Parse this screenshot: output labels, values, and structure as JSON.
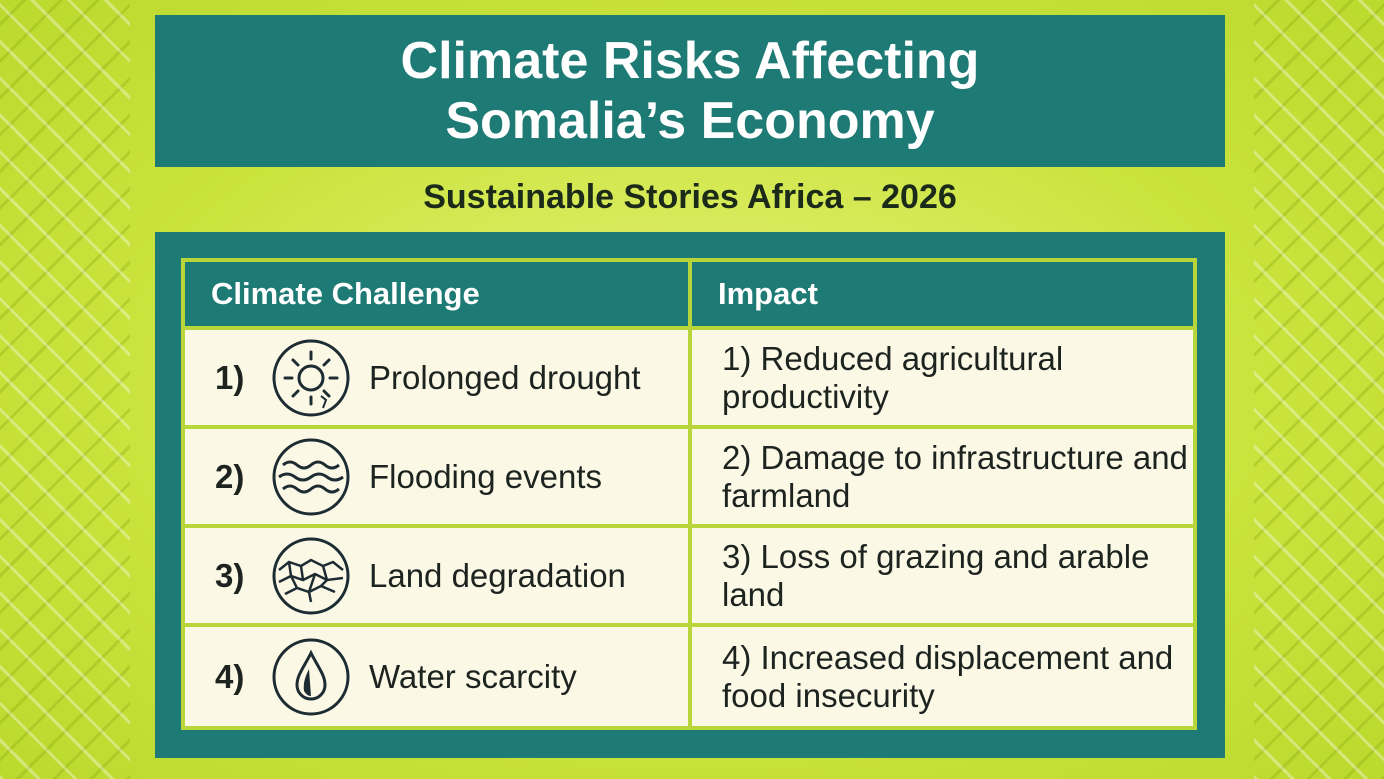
{
  "header": {
    "title": "Climate Risks Affecting Somalia’s Economy",
    "subtitle": "Sustainable Stories Africa – 2026"
  },
  "table": {
    "columns": [
      "Climate Challenge",
      "Impact"
    ],
    "rows": [
      {
        "number": "1)",
        "challenge": "Prolonged drought",
        "impact": "1) Reduced agricultural productivity"
      },
      {
        "number": "2)",
        "challenge": "Flooding events",
        "impact": "2) Damage to infrastructure and farmland"
      },
      {
        "number": "3)",
        "challenge": "Land degradation",
        "impact": "3) Loss of grazing and arable land"
      },
      {
        "number": "4)",
        "challenge": "Water scarcity",
        "impact": "4) Increased displacement and food insecurity"
      }
    ]
  }
}
